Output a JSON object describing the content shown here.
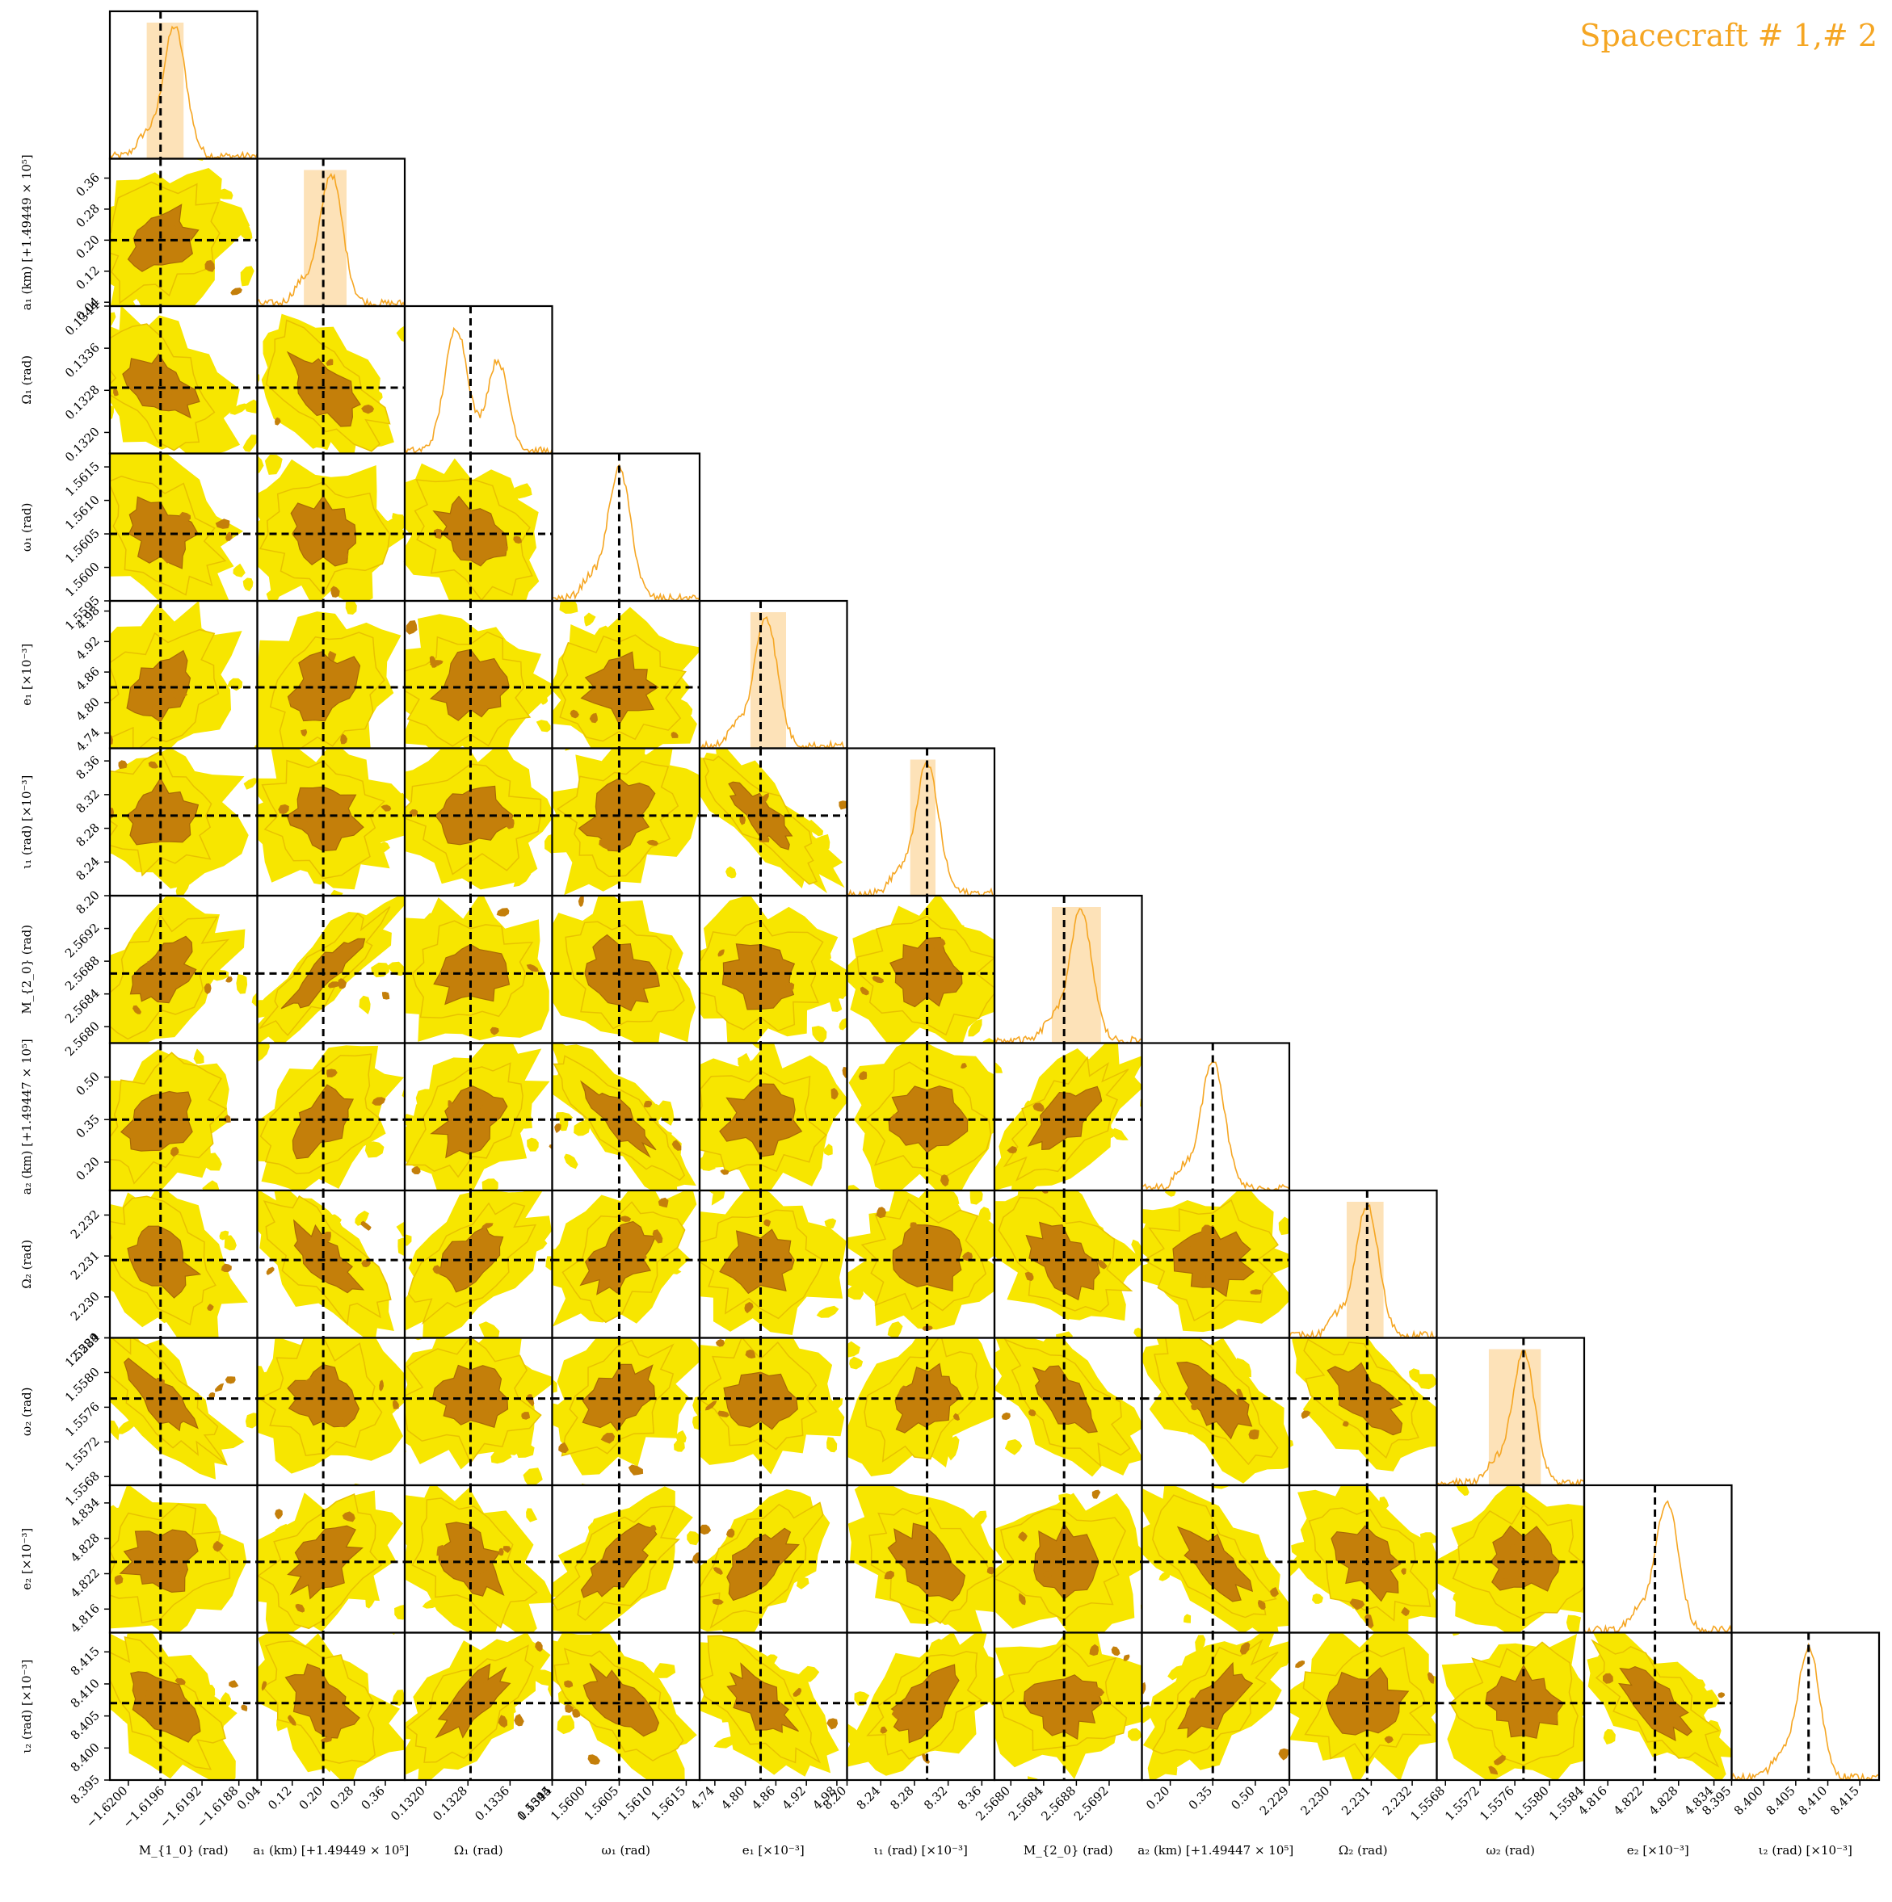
{
  "title": "Spacecraft # 1,# 2",
  "colors": {
    "accent": "#f5a623",
    "contour_outer": "#f7e600",
    "contour_mid": "#e8c200",
    "contour_inner": "#c47f0a",
    "band": "#fde2b8",
    "truth_line": "#000000"
  },
  "chart_data": {
    "type": "scatter",
    "subtype": "corner",
    "grid": false,
    "parameters": [
      {
        "name": "M1_0",
        "xlabel": "M_{1_0} (rad)",
        "ylabel": "",
        "ticks": [
          "−1.6200",
          "−1.6196",
          "−1.6192",
          "−1.6188"
        ],
        "tick_values": [
          -1.62,
          -1.6196,
          -1.6192,
          -1.6188
        ],
        "range": [
          -1.6202,
          -1.6186
        ],
        "truth": -1.61965,
        "band": [
          -1.6198,
          -1.6194
        ],
        "peak": -1.6195,
        "hist_shape": "unimodal"
      },
      {
        "name": "a1",
        "xlabel": "a₁ (km) [+1.49449 × 10⁵]",
        "ylabel": "a₁ (km) [+1.49449 × 10⁵]",
        "ticks": [
          "0.04",
          "0.12",
          "0.20",
          "0.28",
          "0.36"
        ],
        "tick_values": [
          0.04,
          0.12,
          0.2,
          0.28,
          0.36
        ],
        "range": [
          0.03,
          0.41
        ],
        "truth": 0.2,
        "band": [
          0.15,
          0.26
        ],
        "peak": 0.22,
        "hist_shape": "unimodal"
      },
      {
        "name": "Omega1",
        "xlabel": "Ω₁ (rad)",
        "ylabel": "Ω₁ (rad)",
        "ticks": [
          "0.1320",
          "0.1328",
          "0.1336",
          "0.1344"
        ],
        "tick_values": [
          0.132,
          0.1328,
          0.1336,
          0.1344
        ],
        "range": [
          0.1316,
          0.1344
        ],
        "truth": 0.13285,
        "band": null,
        "peak": 0.1326,
        "hist_shape": "bimodal"
      },
      {
        "name": "omega1",
        "xlabel": "ω₁ (rad)",
        "ylabel": "ω₁ (rad)",
        "ticks": [
          "1.5595",
          "1.5600",
          "1.5605",
          "1.5610",
          "1.5615"
        ],
        "tick_values": [
          1.5595,
          1.56,
          1.5605,
          1.561,
          1.5615
        ],
        "range": [
          1.5595,
          1.5617
        ],
        "truth": 1.5605,
        "band": null,
        "peak": 1.5605,
        "hist_shape": "unimodal"
      },
      {
        "name": "e1",
        "xlabel": "e₁ [×10⁻³]",
        "ylabel": "e₁ [×10⁻³]",
        "ticks": [
          "4.74",
          "4.80",
          "4.86",
          "4.92",
          "4.98"
        ],
        "tick_values": [
          4.74,
          4.8,
          4.86,
          4.92,
          4.98
        ],
        "range": [
          4.71,
          5.0
        ],
        "truth": 4.83,
        "band": [
          4.81,
          4.88
        ],
        "peak": 4.84,
        "hist_shape": "unimodal"
      },
      {
        "name": "iota1",
        "xlabel": "ι₁ (rad) [×10⁻³]",
        "ylabel": "ι₁ (rad) [×10⁻³]",
        "ticks": [
          "8.20",
          "8.24",
          "8.28",
          "8.32",
          "8.36"
        ],
        "tick_values": [
          8.2,
          8.24,
          8.28,
          8.32,
          8.36
        ],
        "range": [
          8.2,
          8.375
        ],
        "truth": 8.295,
        "band": [
          8.275,
          8.305
        ],
        "peak": 8.295,
        "hist_shape": "unimodal"
      },
      {
        "name": "M2_0",
        "xlabel": "M_{2_0} (rad)",
        "ylabel": "M_{2_0} (rad)",
        "ticks": [
          "2.5680",
          "2.5684",
          "2.5688",
          "2.5692"
        ],
        "tick_values": [
          2.568,
          2.5684,
          2.5688,
          2.5692
        ],
        "range": [
          2.5678,
          2.5696
        ],
        "truth": 2.56865,
        "band": [
          2.5685,
          2.5691
        ],
        "peak": 2.56885,
        "hist_shape": "unimodal"
      },
      {
        "name": "a2",
        "xlabel": "a₂ (km) [+1.49447 × 10⁵]",
        "ylabel": "a₂ (km) [+1.49447 × 10⁵]",
        "ticks": [
          "0.20",
          "0.35",
          "0.50"
        ],
        "tick_values": [
          0.2,
          0.35,
          0.5
        ],
        "range": [
          0.1,
          0.62
        ],
        "truth": 0.35,
        "band": null,
        "peak": 0.35,
        "hist_shape": "unimodal"
      },
      {
        "name": "Omega2",
        "xlabel": "Ω₂ (rad)",
        "ylabel": "Ω₂ (rad)",
        "ticks": [
          "2.229",
          "2.230",
          "2.231",
          "2.232"
        ],
        "tick_values": [
          2.229,
          2.23,
          2.231,
          2.232
        ],
        "range": [
          2.229,
          2.2326
        ],
        "truth": 2.2309,
        "band": [
          2.2304,
          2.2313
        ],
        "peak": 2.2309,
        "hist_shape": "unimodal"
      },
      {
        "name": "omega2",
        "xlabel": "ω₂ (rad)",
        "ylabel": "ω₂ (rad)",
        "ticks": [
          "1.5568",
          "1.5572",
          "1.5576",
          "1.5580",
          "1.5584"
        ],
        "tick_values": [
          1.5568,
          1.5572,
          1.5576,
          1.558,
          1.5584
        ],
        "range": [
          1.5567,
          1.5584
        ],
        "truth": 1.5577,
        "band": [
          1.5573,
          1.5579
        ],
        "peak": 1.5577,
        "hist_shape": "unimodal"
      },
      {
        "name": "e2",
        "xlabel": "e₂ [×10⁻³]",
        "ylabel": "e₂ [×10⁻³]",
        "ticks": [
          "4.816",
          "4.822",
          "4.828",
          "4.834"
        ],
        "tick_values": [
          4.816,
          4.822,
          4.828,
          4.834
        ],
        "range": [
          4.812,
          4.837
        ],
        "truth": 4.824,
        "band": null,
        "peak": 4.826,
        "hist_shape": "unimodal"
      },
      {
        "name": "iota2",
        "xlabel": "ι₂ (rad) [×10⁻³]",
        "ylabel": "ι₂ (rad) [×10⁻³]",
        "ticks": [
          "8.395",
          "8.400",
          "8.405",
          "8.410",
          "8.415"
        ],
        "tick_values": [
          8.395,
          8.4,
          8.405,
          8.41,
          8.415
        ],
        "range": [
          8.395,
          8.418
        ],
        "truth": 8.407,
        "band": null,
        "peak": 8.407,
        "hist_shape": "unimodal"
      }
    ],
    "correlations": [
      [
        0,
        0,
        0,
        0,
        0,
        0,
        0,
        0,
        0,
        0,
        0,
        0
      ],
      [
        0.1,
        0,
        0,
        0,
        0,
        0,
        0,
        0,
        0,
        0,
        0,
        0
      ],
      [
        -0.3,
        -0.5,
        0,
        0,
        0,
        0,
        0,
        0,
        0,
        0,
        0,
        0
      ],
      [
        -0.2,
        0,
        -0.2,
        0,
        0,
        0,
        0,
        0,
        0,
        0,
        0,
        0
      ],
      [
        0.2,
        0.1,
        0,
        0,
        0,
        0,
        0,
        0,
        0,
        0,
        0,
        0
      ],
      [
        0,
        0,
        0,
        0.2,
        -0.9,
        0,
        0,
        0,
        0,
        0,
        0,
        0
      ],
      [
        0.4,
        0.95,
        0,
        -0.2,
        0,
        0,
        0,
        0,
        0,
        0,
        0,
        0
      ],
      [
        0.2,
        0.4,
        0.3,
        -0.9,
        0,
        0,
        0.6,
        0,
        0,
        0,
        0,
        0
      ],
      [
        -0.3,
        -0.6,
        0.5,
        0.3,
        0,
        0,
        -0.3,
        0,
        0,
        0,
        0,
        0
      ],
      [
        -0.8,
        0,
        0,
        0.3,
        0,
        0.3,
        -0.5,
        -0.5,
        -0.5,
        0,
        0,
        0
      ],
      [
        0,
        0.3,
        -0.3,
        0.6,
        0.5,
        -0.3,
        0,
        -0.6,
        -0.3,
        0,
        0,
        0
      ],
      [
        -0.5,
        -0.4,
        0.6,
        -0.6,
        -0.6,
        0.5,
        0,
        0.6,
        0,
        0,
        -0.7,
        0
      ]
    ]
  }
}
